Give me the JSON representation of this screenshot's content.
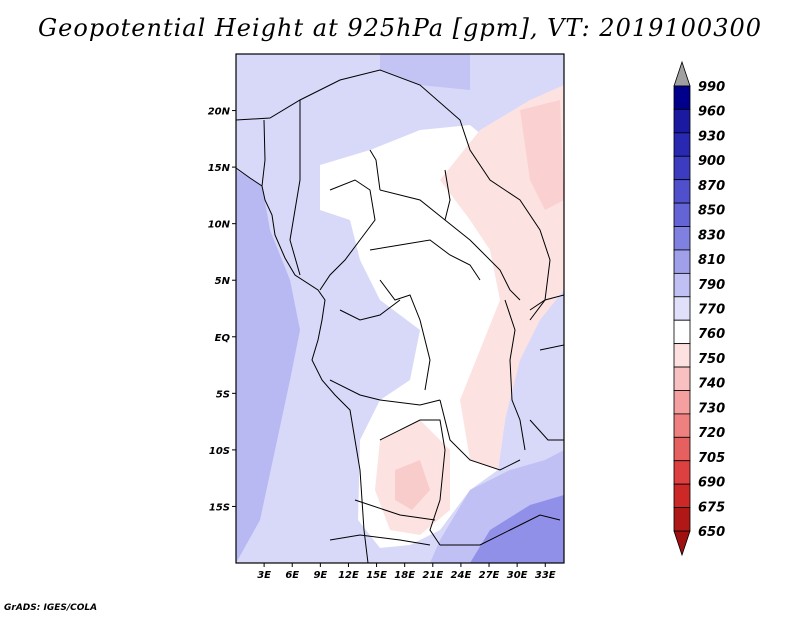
{
  "title": "Geopotential Height at 925hPa [gpm], VT: 2019100300",
  "footer": "GrADS: IGES/COLA",
  "map": {
    "lon_range": [
      0,
      35
    ],
    "lat_range": [
      -20,
      25
    ],
    "lon_ticks": [
      "3E",
      "6E",
      "9E",
      "12E",
      "15E",
      "18E",
      "21E",
      "24E",
      "27E",
      "30E",
      "33E"
    ],
    "lat_ticks": [
      "20N",
      "15N",
      "10N",
      "5N",
      "EQ",
      "5S",
      "10S",
      "15S"
    ]
  },
  "colorbar": {
    "levels": [
      "990",
      "960",
      "930",
      "900",
      "870",
      "850",
      "830",
      "810",
      "790",
      "770",
      "760",
      "750",
      "740",
      "730",
      "720",
      "705",
      "690",
      "675",
      "650"
    ],
    "colors": [
      "#00008b",
      "#1a1aa0",
      "#2828b0",
      "#3c3cc0",
      "#5050cc",
      "#6464d6",
      "#8080e0",
      "#a0a0ea",
      "#c0c0f4",
      "#e0e0fa",
      "#ffffff",
      "#fde0e0",
      "#f8c0c0",
      "#f4a0a0",
      "#ee8080",
      "#e66060",
      "#dc4040",
      "#cc2828",
      "#b01818"
    ],
    "top_arrow_color": "#a0a0a0",
    "bottom_arrow_color": "#a01010"
  }
}
